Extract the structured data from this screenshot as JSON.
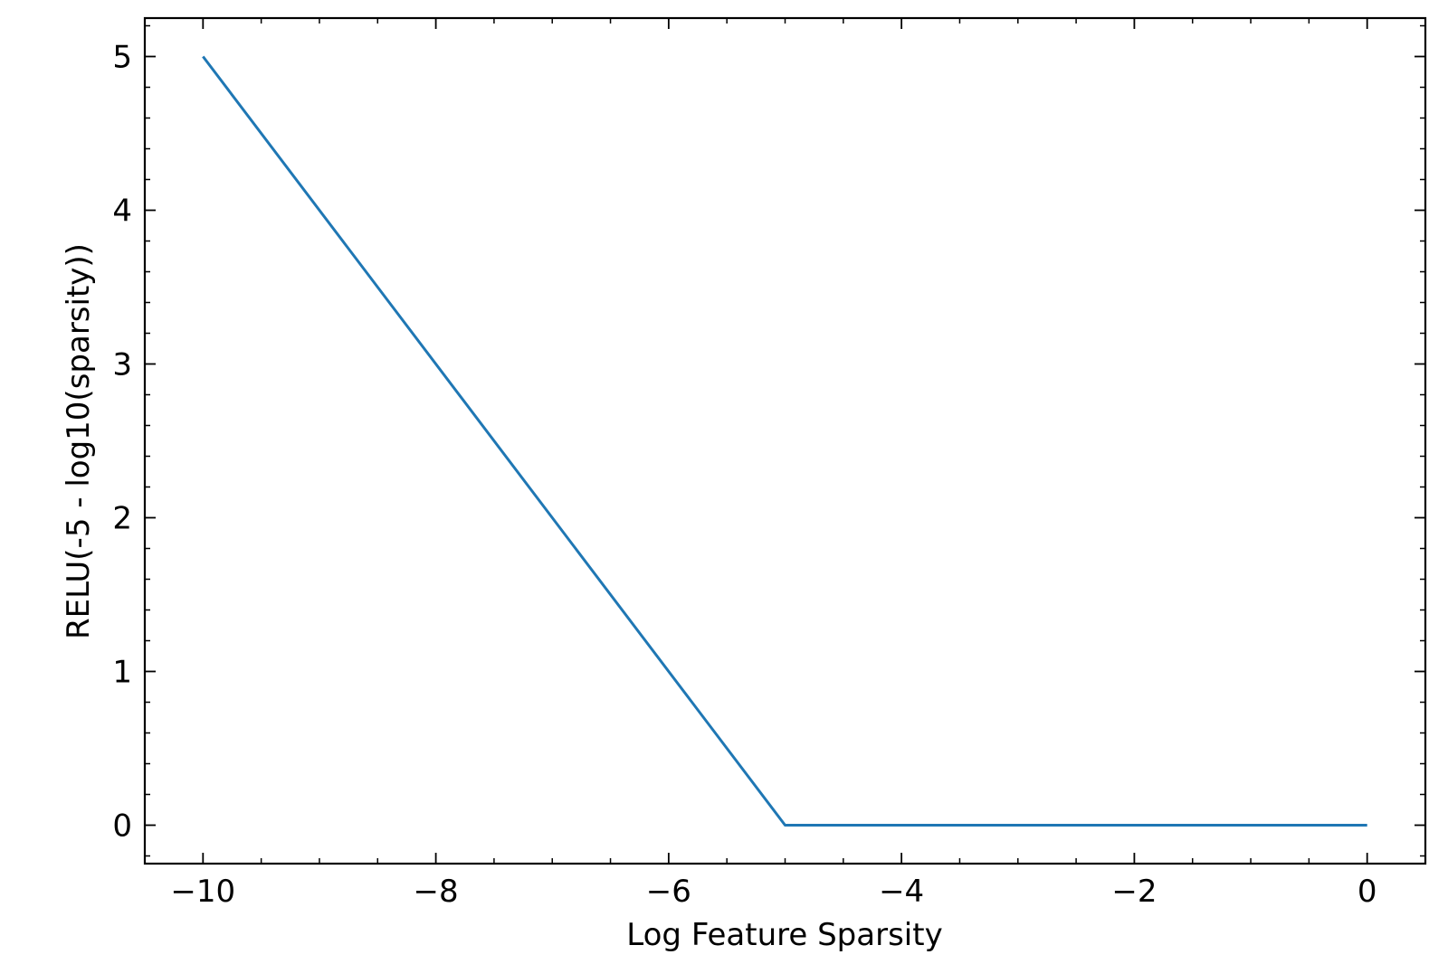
{
  "chart_data": {
    "type": "line",
    "xlabel": "Log Feature Sparsity",
    "ylabel": "RELU(-5 - log10(sparsity))",
    "xlim": [
      -10.5,
      0.5
    ],
    "ylim": [
      -0.25,
      5.25
    ],
    "x_ticks": [
      -10,
      -8,
      -6,
      -4,
      -2,
      0
    ],
    "x_tick_labels": [
      "−10",
      "−8",
      "−6",
      "−4",
      "−2",
      "0"
    ],
    "x_minor_step": 0.5,
    "y_ticks": [
      0,
      1,
      2,
      3,
      4,
      5
    ],
    "y_tick_labels": [
      "0",
      "1",
      "2",
      "3",
      "4",
      "5"
    ],
    "y_minor_step": 0.2,
    "grid": false,
    "series": [
      {
        "color": "#1f77b4",
        "x": [
          -10,
          -5,
          0
        ],
        "y": [
          5,
          0,
          0
        ]
      }
    ]
  }
}
